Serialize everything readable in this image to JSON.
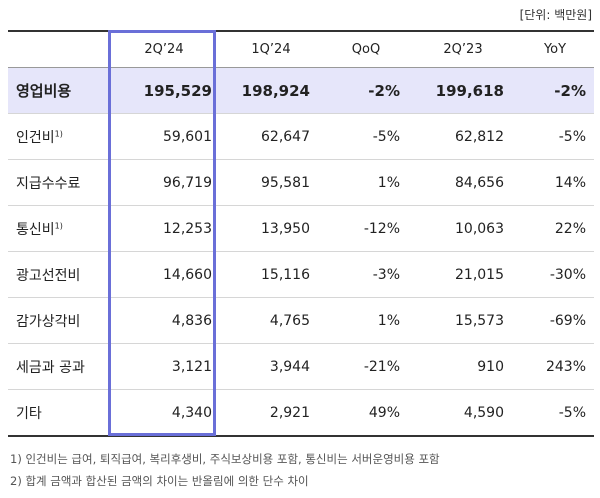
{
  "unit_label": "[단위: 백만원]",
  "headers": [
    "",
    "2Q’24",
    "1Q’24",
    "QoQ",
    "2Q’23",
    "YoY"
  ],
  "rows": [
    {
      "label": "영업비용",
      "sup": "",
      "values": [
        "195,529",
        "198,924",
        "-2%",
        "199,618",
        "-2%"
      ]
    },
    {
      "label": "인건비",
      "sup": "1)",
      "values": [
        "59,601",
        "62,647",
        "-5%",
        "62,812",
        "-5%"
      ]
    },
    {
      "label": "지급수수료",
      "sup": "",
      "values": [
        "96,719",
        "95,581",
        "1%",
        "84,656",
        "14%"
      ]
    },
    {
      "label": "통신비",
      "sup": "1)",
      "values": [
        "12,253",
        "13,950",
        "-12%",
        "10,063",
        "22%"
      ]
    },
    {
      "label": "광고선전비",
      "sup": "",
      "values": [
        "14,660",
        "15,116",
        "-3%",
        "21,015",
        "-30%"
      ]
    },
    {
      "label": "감가상각비",
      "sup": "",
      "values": [
        "4,836",
        "4,765",
        "1%",
        "15,573",
        "-69%"
      ]
    },
    {
      "label": "세금과 공과",
      "sup": "",
      "values": [
        "3,121",
        "3,944",
        "-21%",
        "910",
        "243%"
      ]
    },
    {
      "label": "기타",
      "sup": "",
      "values": [
        "4,340",
        "2,921",
        "49%",
        "4,590",
        "-5%"
      ]
    }
  ],
  "notes": [
    "1) 인건비는 급여, 퇴직급여, 복리후생비, 주식보상비용 포함, 통신비는 서버운영비용 포함",
    "2) 합계 금액과 합산된 금액의 차이는 반올림에 의한 단수 차이"
  ]
}
